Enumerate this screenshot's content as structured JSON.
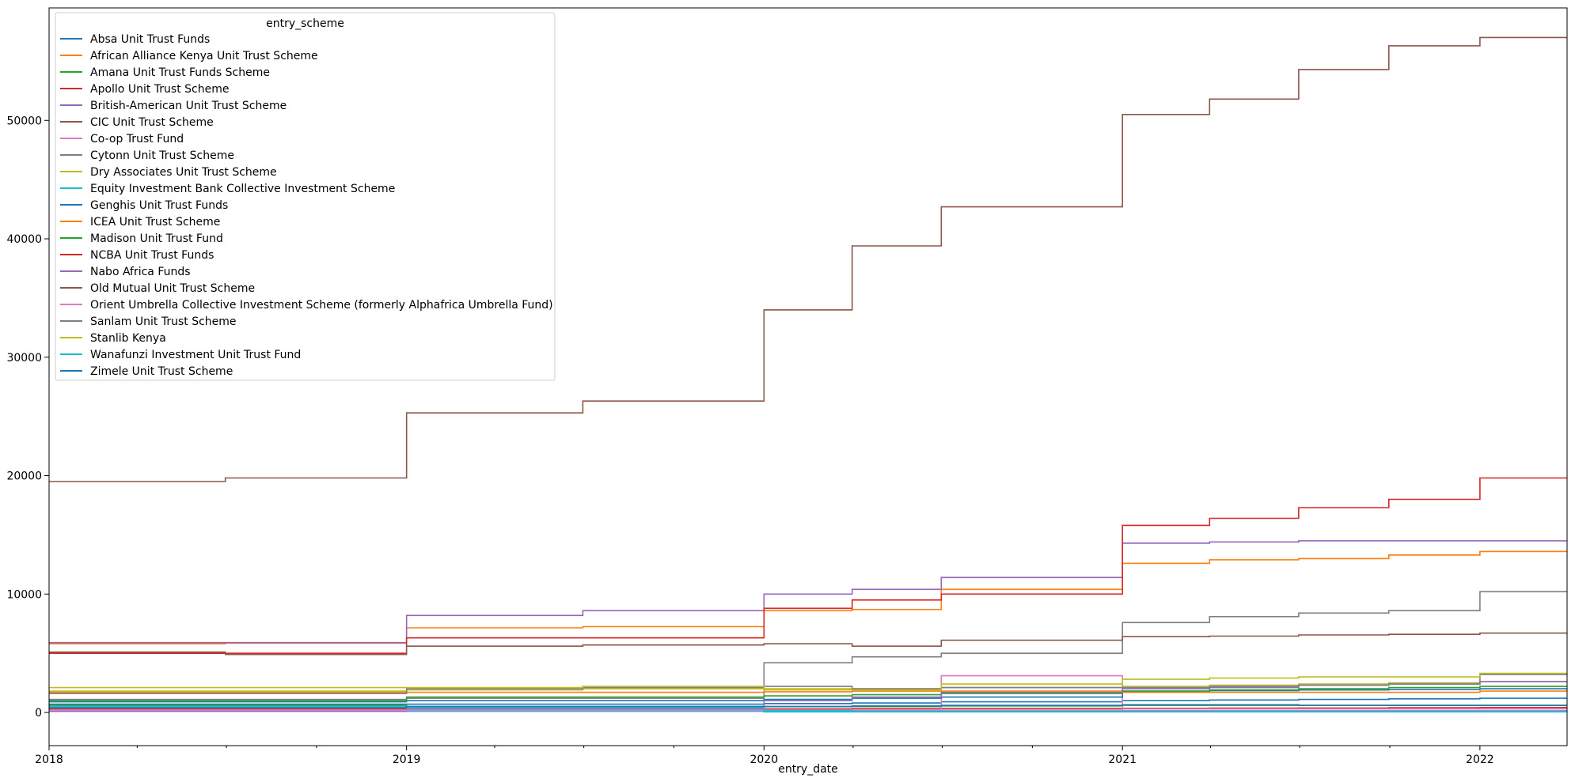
{
  "chart_data": {
    "type": "line",
    "xlabel": "entry_date",
    "ylabel": "",
    "xlim": [
      "2018-01-01",
      "2022-03-31"
    ],
    "ylim": [
      -2800,
      59500
    ],
    "x_ticks": [
      "2018",
      "2019",
      "2020",
      "2021",
      "2022"
    ],
    "y_ticks": [
      0,
      10000,
      20000,
      30000,
      40000,
      50000
    ],
    "grid": false,
    "legend": {
      "title": "entry_scheme",
      "placement": "top-left"
    },
    "x": [
      "2018-01-01",
      "2018-06-30",
      "2019-01-01",
      "2019-06-30",
      "2020-01-01",
      "2020-03-31",
      "2020-06-30",
      "2021-01-01",
      "2021-03-31",
      "2021-06-30",
      "2021-09-30",
      "2022-01-01",
      "2022-03-31"
    ],
    "series": [
      {
        "name": "Absa Unit Trust Funds",
        "color": "#1f77b4",
        "values": [
          700,
          700,
          700,
          700,
          750,
          800,
          900,
          1000,
          1050,
          1100,
          1150,
          1200,
          1200
        ]
      },
      {
        "name": "African Alliance Kenya Unit Trust Scheme",
        "color": "#ff7f0e",
        "values": [
          5800,
          5850,
          7150,
          7250,
          8600,
          8700,
          10400,
          12600,
          12900,
          13000,
          13300,
          13600,
          13600
        ]
      },
      {
        "name": "Amana Unit Trust Funds Scheme",
        "color": "#2ca02c",
        "values": [
          600,
          600,
          500,
          500,
          500,
          500,
          550,
          600,
          600,
          600,
          600,
          600,
          600
        ]
      },
      {
        "name": "Apollo Unit Trust Scheme",
        "color": "#d62728",
        "values": [
          300,
          300,
          300,
          300,
          300,
          320,
          330,
          350,
          370,
          380,
          400,
          420,
          420
        ]
      },
      {
        "name": "British-American Unit Trust Scheme",
        "color": "#9467bd",
        "values": [
          5900,
          5900,
          8200,
          8600,
          10000,
          10400,
          11400,
          14300,
          14400,
          14500,
          14500,
          14500,
          14500
        ]
      },
      {
        "name": "CIC Unit Trust Scheme",
        "color": "#8c564b",
        "values": [
          19500,
          19800,
          25300,
          26300,
          34000,
          39400,
          42700,
          50500,
          51800,
          54300,
          56300,
          57000,
          57000
        ]
      },
      {
        "name": "Co-op Trust Fund",
        "color": "#e377c2",
        "values": [
          100,
          100,
          100,
          100,
          100,
          120,
          3100,
          150,
          150,
          150,
          150,
          150,
          150
        ]
      },
      {
        "name": "Cytonn Unit Trust Scheme",
        "color": "#7f7f7f",
        "values": [
          1100,
          1100,
          1200,
          1200,
          4200,
          4700,
          5000,
          7600,
          8100,
          8400,
          8600,
          10200,
          10200
        ]
      },
      {
        "name": "Dry Associates Unit Trust Scheme",
        "color": "#bcbd22",
        "values": [
          1800,
          1800,
          1900,
          2000,
          2000,
          2000,
          2100,
          2200,
          2300,
          2400,
          2500,
          2600,
          2600
        ]
      },
      {
        "name": "Equity Investment Bank Collective Investment Scheme",
        "color": "#17becf",
        "values": [
          500,
          500,
          100,
          100,
          50,
          50,
          50,
          50,
          50,
          50,
          50,
          50,
          50
        ]
      },
      {
        "name": "Genghis Unit Trust Funds",
        "color": "#1f77b4",
        "values": [
          900,
          900,
          1000,
          1000,
          1100,
          1200,
          1300,
          1800,
          1850,
          1900,
          1950,
          2000,
          2000
        ]
      },
      {
        "name": "ICEA Unit Trust Scheme",
        "color": "#ff7f0e",
        "values": [
          1700,
          1700,
          1700,
          1700,
          1750,
          1800,
          1800,
          1700,
          1700,
          1700,
          1700,
          1800,
          1800
        ]
      },
      {
        "name": "Madison Unit Trust Fund",
        "color": "#2ca02c",
        "values": [
          1000,
          1000,
          1300,
          1300,
          1400,
          1500,
          1600,
          1800,
          1900,
          2000,
          2100,
          2200,
          2200
        ]
      },
      {
        "name": "NCBA Unit Trust Funds",
        "color": "#d62728",
        "values": [
          5000,
          5000,
          6300,
          6300,
          8800,
          9500,
          10000,
          15800,
          16400,
          17300,
          18000,
          19800,
          19800
        ]
      },
      {
        "name": "Nabo Africa Funds",
        "color": "#9467bd",
        "values": [
          100,
          100,
          300,
          300,
          1000,
          1300,
          1700,
          2000,
          2100,
          2300,
          2400,
          2600,
          2600
        ]
      },
      {
        "name": "Old Mutual Unit Trust Scheme",
        "color": "#8c564b",
        "values": [
          5100,
          4900,
          5600,
          5700,
          5800,
          5600,
          6100,
          6400,
          6450,
          6550,
          6600,
          6700,
          6700
        ]
      },
      {
        "name": "Orient Umbrella Collective Investment Scheme (formerly Alphafrica Umbrella Fund)",
        "color": "#e377c2",
        "values": [
          200,
          200,
          200,
          200,
          200,
          200,
          200,
          300,
          300,
          300,
          300,
          300,
          300
        ]
      },
      {
        "name": "Sanlam Unit Trust Scheme",
        "color": "#7f7f7f",
        "values": [
          1600,
          1600,
          2000,
          2100,
          2200,
          2000,
          2100,
          2100,
          2200,
          2300,
          2400,
          3200,
          3200
        ]
      },
      {
        "name": "Stanlib Kenya",
        "color": "#bcbd22",
        "values": [
          2100,
          2100,
          2100,
          2200,
          1900,
          1900,
          2400,
          2800,
          2900,
          3000,
          3000,
          3300,
          3300
        ]
      },
      {
        "name": "Wanafunzi Investment Unit Trust Fund",
        "color": "#17becf",
        "values": [
          400,
          400,
          400,
          400,
          150,
          100,
          100,
          100,
          100,
          100,
          100,
          100,
          100
        ]
      },
      {
        "name": "Zimele Unit Trust Scheme",
        "color": "#1f77b4",
        "values": [
          400,
          400,
          500,
          500,
          500,
          550,
          600,
          650,
          650,
          600,
          600,
          600,
          600
        ]
      }
    ]
  }
}
